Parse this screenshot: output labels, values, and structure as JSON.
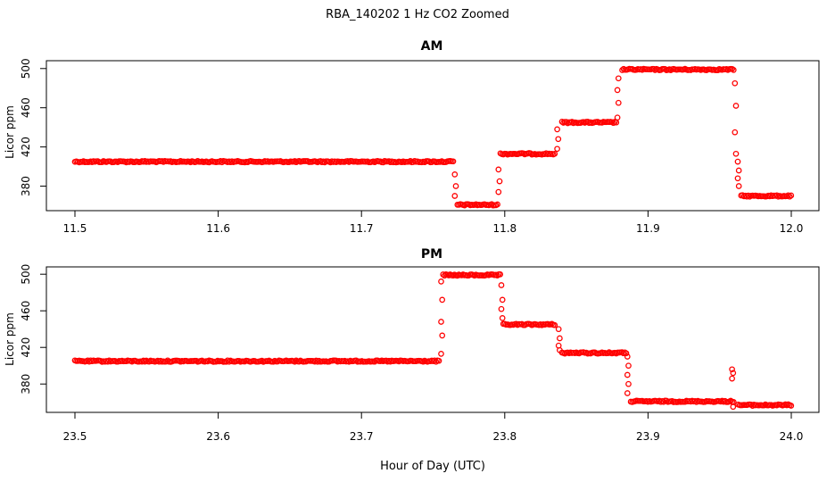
{
  "chart_data": {
    "title": "RBA_140202  1 Hz CO2 Zoomed",
    "xlabel": "Hour of Day (UTC)",
    "panels": [
      {
        "type": "scatter",
        "title": "AM",
        "ylabel": "Licor ppm",
        "xlim": [
          11.5,
          12.0
        ],
        "ylim": [
          355,
          508
        ],
        "xticks": [
          "11.5",
          "11.6",
          "11.7",
          "11.8",
          "11.9",
          "12.0"
        ],
        "yticks": [
          "380",
          "420",
          "460",
          "500"
        ],
        "marker_color": "#ff0000",
        "segments": [
          {
            "x_start": 11.5,
            "x_end": 11.765,
            "y": 405
          },
          {
            "x_start": 11.767,
            "x_end": 11.795,
            "y": 361
          },
          {
            "x_start": 11.797,
            "x_end": 11.835,
            "y": 413
          },
          {
            "x_start": 11.84,
            "x_end": 11.878,
            "y": 445
          },
          {
            "x_start": 11.882,
            "x_end": 11.96,
            "y": 499
          },
          {
            "x_start": 11.965,
            "x_end": 12.0,
            "y": 370
          }
        ],
        "transitions": [
          {
            "x": 11.7655,
            "y": [
              392,
              380,
              370
            ]
          },
          {
            "x": 11.796,
            "y": [
              374,
              385,
              397
            ]
          },
          {
            "x": 11.837,
            "y": [
              418,
              428,
              438
            ]
          },
          {
            "x": 11.879,
            "y": [
              450,
              465,
              478,
              490
            ]
          },
          {
            "x": 11.961,
            "y": [
              485,
              462,
              435,
              413
            ]
          },
          {
            "x": 11.963,
            "y": [
              405,
              396,
              388,
              380
            ]
          }
        ]
      },
      {
        "type": "scatter",
        "title": "PM",
        "ylabel": "Licor ppm",
        "xlim": [
          23.5,
          24.0
        ],
        "ylim": [
          349,
          508
        ],
        "xticks": [
          "23.5",
          "23.6",
          "23.7",
          "23.8",
          "23.9",
          "24.0"
        ],
        "yticks": [
          "380",
          "420",
          "460",
          "500"
        ],
        "marker_color": "#ff0000",
        "segments": [
          {
            "x_start": 23.5,
            "x_end": 23.755,
            "y": 405
          },
          {
            "x_start": 23.757,
            "x_end": 23.797,
            "y": 499
          },
          {
            "x_start": 23.799,
            "x_end": 23.835,
            "y": 445
          },
          {
            "x_start": 23.84,
            "x_end": 23.885,
            "y": 414
          },
          {
            "x_start": 23.888,
            "x_end": 23.96,
            "y": 361
          },
          {
            "x_start": 23.963,
            "x_end": 24.0,
            "y": 357
          }
        ],
        "transitions": [
          {
            "x": 23.756,
            "y": [
              413,
              433,
              448,
              472,
              492
            ]
          },
          {
            "x": 23.798,
            "y": [
              488,
              472,
              462,
              452
            ]
          },
          {
            "x": 23.838,
            "y": [
              440,
              430,
              422,
              417
            ]
          },
          {
            "x": 23.886,
            "y": [
              410,
              400,
              390,
              380,
              370
            ]
          },
          {
            "x": 23.959,
            "y": [
              396,
              392,
              386,
              355
            ]
          }
        ]
      }
    ]
  }
}
